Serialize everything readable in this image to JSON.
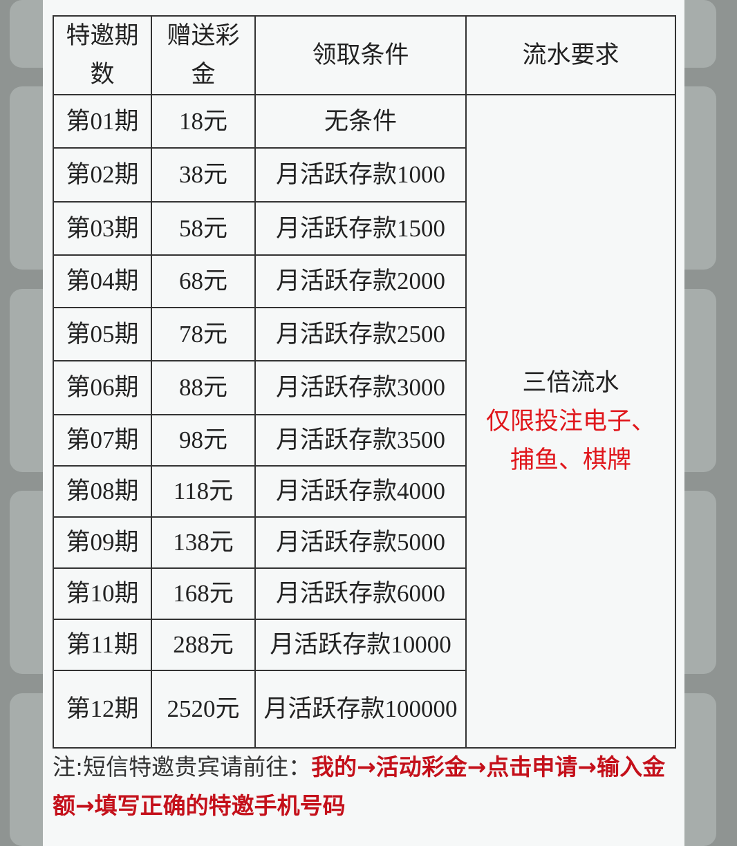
{
  "table": {
    "headers": [
      "特邀期数",
      "赠送彩金",
      "领取条件",
      "流水要求"
    ],
    "rows": [
      {
        "period": "第01期",
        "bonus": "18元",
        "condition": "无条件"
      },
      {
        "period": "第02期",
        "bonus": "38元",
        "condition": "月活跃存款1000"
      },
      {
        "period": "第03期",
        "bonus": "58元",
        "condition": "月活跃存款1500"
      },
      {
        "period": "第04期",
        "bonus": "68元",
        "condition": "月活跃存款2000"
      },
      {
        "period": "第05期",
        "bonus": "78元",
        "condition": "月活跃存款2500"
      },
      {
        "period": "第06期",
        "bonus": "88元",
        "condition": "月活跃存款3000"
      },
      {
        "period": "第07期",
        "bonus": "98元",
        "condition": "月活跃存款3500"
      },
      {
        "period": "第08期",
        "bonus": "118元",
        "condition": "月活跃存款4000"
      },
      {
        "period": "第09期",
        "bonus": "138元",
        "condition": "月活跃存款5000"
      },
      {
        "period": "第10期",
        "bonus": "168元",
        "condition": "月活跃存款6000"
      },
      {
        "period": "第11期",
        "bonus": "288元",
        "condition": "月活跃存款10000"
      },
      {
        "period": "第12期",
        "bonus": "2520元",
        "condition": "月活跃存款100000"
      }
    ],
    "turnover": {
      "main": "三倍流水",
      "restriction": "仅限投注电子、捕鱼、棋牌"
    }
  },
  "note": {
    "prefix": "注:短信特邀贵宾请前往：",
    "steps": "我的→活动彩金→点击申请→输入金额→填写正确的特邀手机号码"
  },
  "colors": {
    "accent_red": "#e0161b",
    "steps_red": "#c4101a"
  }
}
